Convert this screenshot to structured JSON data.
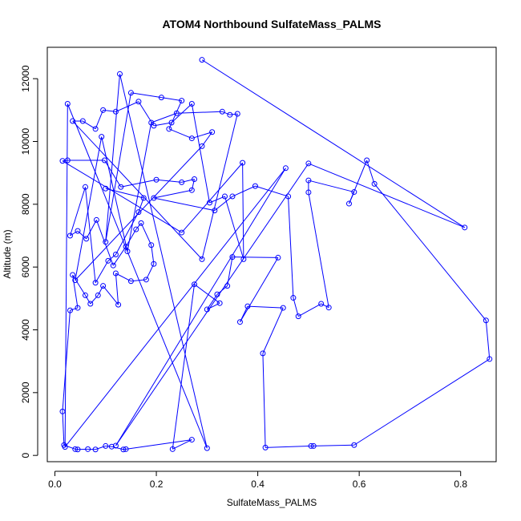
{
  "chart_data": {
    "type": "scatter",
    "title": "ATOM4 Northbound SulfateMass_PALMS",
    "xlabel": "SulfateMass_PALMS",
    "ylabel": "Altitude (m)",
    "xlim": [
      -0.015,
      0.87
    ],
    "ylim": [
      -200,
      13000
    ],
    "x_ticks": [
      "0.0",
      "0.2",
      "0.4",
      "0.6",
      "0.8"
    ],
    "x_tick_values": [
      0,
      0.2,
      0.4,
      0.6,
      0.8
    ],
    "y_ticks": [
      "0",
      "2000",
      "4000",
      "6000",
      "8000",
      "10000",
      "12000"
    ],
    "y_tick_values": [
      0,
      2000,
      4000,
      6000,
      8000,
      10000,
      12000
    ],
    "color": "#0000ff",
    "series": [
      {
        "points": [
          {
            "x": 0.29,
            "y": 12600
          },
          {
            "x": 0.808,
            "y": 7260
          },
          {
            "x": 0.5,
            "y": 9300
          },
          {
            "x": 0.12,
            "y": 310
          },
          {
            "x": 0.455,
            "y": 9150
          },
          {
            "x": 0.02,
            "y": 270
          },
          {
            "x": 0.025,
            "y": 11200
          },
          {
            "x": 0.3,
            "y": 230
          },
          {
            "x": 0.128,
            "y": 12150
          },
          {
            "x": 0.1,
            "y": 6800
          },
          {
            "x": 0.15,
            "y": 11550
          },
          {
            "x": 0.21,
            "y": 11400
          },
          {
            "x": 0.25,
            "y": 11300
          },
          {
            "x": 0.225,
            "y": 10400
          },
          {
            "x": 0.27,
            "y": 10100
          },
          {
            "x": 0.31,
            "y": 10300
          },
          {
            "x": 0.29,
            "y": 9850
          },
          {
            "x": 0.04,
            "y": 5580
          },
          {
            "x": 0.092,
            "y": 10150
          },
          {
            "x": 0.143,
            "y": 6500
          },
          {
            "x": 0.19,
            "y": 10600
          },
          {
            "x": 0.24,
            "y": 10900
          },
          {
            "x": 0.33,
            "y": 10950
          },
          {
            "x": 0.345,
            "y": 10850
          },
          {
            "x": 0.36,
            "y": 10880
          },
          {
            "x": 0.29,
            "y": 6250
          },
          {
            "x": 0.035,
            "y": 10650
          },
          {
            "x": 0.055,
            "y": 10650
          },
          {
            "x": 0.08,
            "y": 10400
          },
          {
            "x": 0.095,
            "y": 11000
          },
          {
            "x": 0.12,
            "y": 10950
          },
          {
            "x": 0.165,
            "y": 11270
          },
          {
            "x": 0.195,
            "y": 10500
          },
          {
            "x": 0.23,
            "y": 10600
          },
          {
            "x": 0.27,
            "y": 11200
          },
          {
            "x": 0.305,
            "y": 8050
          },
          {
            "x": 0.335,
            "y": 8250
          },
          {
            "x": 0.372,
            "y": 6250
          },
          {
            "x": 0.37,
            "y": 9320
          },
          {
            "x": 0.25,
            "y": 7100
          },
          {
            "x": 0.015,
            "y": 9380
          },
          {
            "x": 0.025,
            "y": 9400
          },
          {
            "x": 0.098,
            "y": 9400
          },
          {
            "x": 0.13,
            "y": 8550
          },
          {
            "x": 0.2,
            "y": 8780
          },
          {
            "x": 0.25,
            "y": 8700
          },
          {
            "x": 0.275,
            "y": 8800
          },
          {
            "x": 0.27,
            "y": 8450
          },
          {
            "x": 0.195,
            "y": 8200
          },
          {
            "x": 0.315,
            "y": 7800
          },
          {
            "x": 0.35,
            "y": 8250
          },
          {
            "x": 0.395,
            "y": 8580
          },
          {
            "x": 0.46,
            "y": 8250
          },
          {
            "x": 0.47,
            "y": 5020
          },
          {
            "x": 0.48,
            "y": 4430
          },
          {
            "x": 0.525,
            "y": 4830
          },
          {
            "x": 0.54,
            "y": 4710
          },
          {
            "x": 0.5,
            "y": 8380
          },
          {
            "x": 0.5,
            "y": 8760
          },
          {
            "x": 0.59,
            "y": 8390
          },
          {
            "x": 0.58,
            "y": 8020
          },
          {
            "x": 0.615,
            "y": 9400
          },
          {
            "x": 0.63,
            "y": 8650
          },
          {
            "x": 0.85,
            "y": 4300
          },
          {
            "x": 0.857,
            "y": 3070
          },
          {
            "x": 0.59,
            "y": 330
          },
          {
            "x": 0.51,
            "y": 300
          },
          {
            "x": 0.505,
            "y": 300
          },
          {
            "x": 0.415,
            "y": 250
          },
          {
            "x": 0.41,
            "y": 3250
          },
          {
            "x": 0.45,
            "y": 4700
          },
          {
            "x": 0.38,
            "y": 4750
          },
          {
            "x": 0.365,
            "y": 4250
          },
          {
            "x": 0.44,
            "y": 6300
          },
          {
            "x": 0.35,
            "y": 6320
          },
          {
            "x": 0.34,
            "y": 5400
          },
          {
            "x": 0.32,
            "y": 5130
          },
          {
            "x": 0.3,
            "y": 4650
          },
          {
            "x": 0.325,
            "y": 4850
          },
          {
            "x": 0.275,
            "y": 5450
          },
          {
            "x": 0.232,
            "y": 200
          },
          {
            "x": 0.27,
            "y": 500
          },
          {
            "x": 0.14,
            "y": 200
          },
          {
            "x": 0.135,
            "y": 190
          },
          {
            "x": 0.112,
            "y": 280
          },
          {
            "x": 0.1,
            "y": 300
          },
          {
            "x": 0.08,
            "y": 190
          },
          {
            "x": 0.065,
            "y": 200
          },
          {
            "x": 0.045,
            "y": 190
          },
          {
            "x": 0.04,
            "y": 200
          },
          {
            "x": 0.018,
            "y": 330
          },
          {
            "x": 0.015,
            "y": 1400
          },
          {
            "x": 0.03,
            "y": 4620
          },
          {
            "x": 0.045,
            "y": 4700
          },
          {
            "x": 0.035,
            "y": 5750
          },
          {
            "x": 0.06,
            "y": 5100
          },
          {
            "x": 0.07,
            "y": 4830
          },
          {
            "x": 0.085,
            "y": 5100
          },
          {
            "x": 0.095,
            "y": 5400
          },
          {
            "x": 0.125,
            "y": 4800
          },
          {
            "x": 0.12,
            "y": 5800
          },
          {
            "x": 0.15,
            "y": 5550
          },
          {
            "x": 0.18,
            "y": 5600
          },
          {
            "x": 0.195,
            "y": 6100
          },
          {
            "x": 0.19,
            "y": 6700
          },
          {
            "x": 0.17,
            "y": 7400
          },
          {
            "x": 0.16,
            "y": 7200
          },
          {
            "x": 0.14,
            "y": 6650
          },
          {
            "x": 0.115,
            "y": 6050
          },
          {
            "x": 0.082,
            "y": 7500
          },
          {
            "x": 0.062,
            "y": 6900
          },
          {
            "x": 0.045,
            "y": 7150
          },
          {
            "x": 0.03,
            "y": 7000
          },
          {
            "x": 0.06,
            "y": 8550
          },
          {
            "x": 0.08,
            "y": 5500
          },
          {
            "x": 0.105,
            "y": 6200
          },
          {
            "x": 0.12,
            "y": 6400
          },
          {
            "x": 0.165,
            "y": 7750
          },
          {
            "x": 0.175,
            "y": 8200
          },
          {
            "x": 0.1,
            "y": 8500
          }
        ]
      }
    ]
  }
}
